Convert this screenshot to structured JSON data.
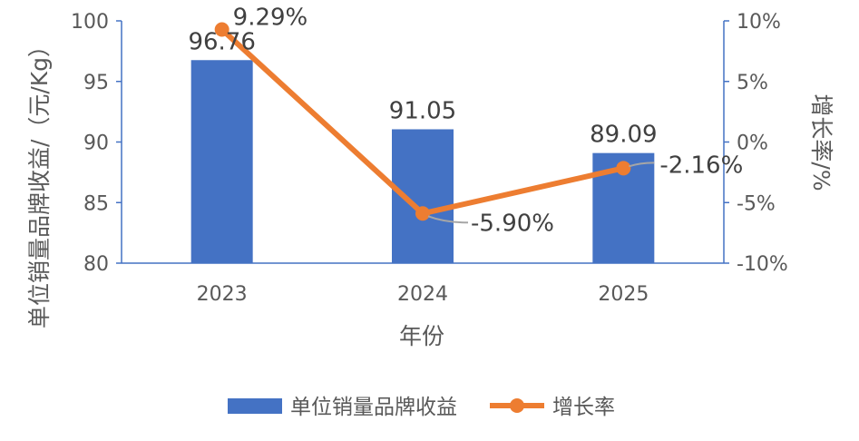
{
  "chart_data": {
    "type": "bar",
    "categories": [
      "2023",
      "2024",
      "2025"
    ],
    "xlabel": "年份",
    "ylabel": "单位销量品牌收益/（元/Kg）",
    "y2label": "增长率/%",
    "ylim": [
      80,
      100
    ],
    "y2lim": [
      -10,
      10
    ],
    "yticks": [
      "80",
      "85",
      "90",
      "95",
      "100"
    ],
    "y2ticks": [
      "-10%",
      "-5%",
      "0%",
      "5%",
      "10%"
    ],
    "series": [
      {
        "name": "单位销量品牌收益",
        "kind": "bar",
        "axis": "left",
        "color": "#4472C4",
        "values": [
          96.76,
          91.05,
          89.09
        ],
        "labels": [
          "96.76",
          "91.05",
          "89.09"
        ]
      },
      {
        "name": "增长率",
        "kind": "line",
        "axis": "right",
        "color": "#ED7D31",
        "values": [
          9.29,
          -5.9,
          -2.16
        ],
        "labels": [
          "9.29%",
          "-5.90%",
          "-2.16%"
        ]
      }
    ],
    "legend": "bottom",
    "grid": false
  }
}
